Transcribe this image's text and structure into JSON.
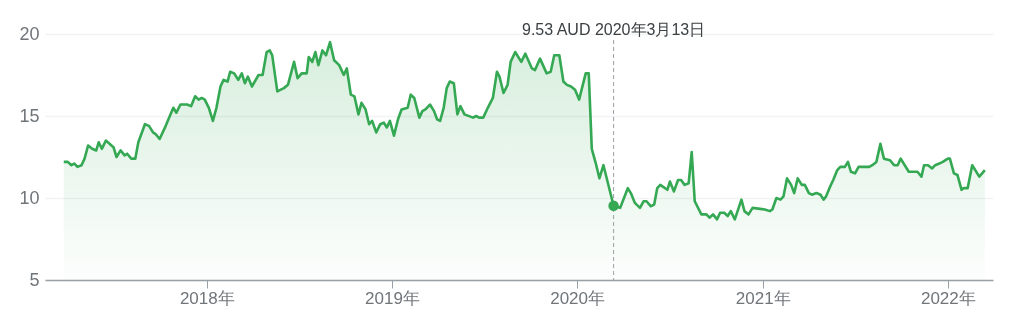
{
  "chart_data": {
    "type": "area",
    "x": [
      "2017-03-25",
      "2017-04-02",
      "2017-04-09",
      "2017-04-15",
      "2017-04-21",
      "2017-04-29",
      "2017-05-05",
      "2017-05-12",
      "2017-05-20",
      "2017-05-28",
      "2017-06-02",
      "2017-06-08",
      "2017-06-16",
      "2017-07-01",
      "2017-07-07",
      "2017-07-15",
      "2017-07-23",
      "2017-07-28",
      "2017-08-05",
      "2017-08-13",
      "2017-08-19",
      "2017-09-01",
      "2017-09-09",
      "2017-09-17",
      "2017-09-22",
      "2017-09-30",
      "2017-10-12",
      "2017-10-27",
      "2017-11-02",
      "2017-11-10",
      "2017-11-23",
      "2017-12-01",
      "2017-12-09",
      "2017-12-16",
      "2017-12-22",
      "2017-12-28",
      "2018-01-05",
      "2018-01-13",
      "2018-01-20",
      "2018-01-28",
      "2018-02-03",
      "2018-02-11",
      "2018-02-16",
      "2018-02-24",
      "2018-03-04",
      "2018-03-11",
      "2018-03-17",
      "2018-03-23",
      "2018-03-31",
      "2018-04-13",
      "2018-04-21",
      "2018-04-29",
      "2018-05-05",
      "2018-05-10",
      "2018-05-20",
      "2018-06-02",
      "2018-06-10",
      "2018-06-22",
      "2018-06-29",
      "2018-07-07",
      "2018-07-17",
      "2018-07-21",
      "2018-07-28",
      "2018-08-03",
      "2018-08-09",
      "2018-08-17",
      "2018-08-24",
      "2018-09-01",
      "2018-09-09",
      "2018-09-19",
      "2018-09-28",
      "2018-10-04",
      "2018-10-12",
      "2018-10-19",
      "2018-10-27",
      "2018-11-02",
      "2018-11-10",
      "2018-11-17",
      "2018-11-23",
      "2018-12-01",
      "2018-12-09",
      "2018-12-16",
      "2018-12-22",
      "2018-12-28",
      "2019-01-05",
      "2019-01-13",
      "2019-01-20",
      "2019-02-01",
      "2019-02-07",
      "2019-02-14",
      "2019-02-24",
      "2019-03-02",
      "2019-03-08",
      "2019-03-17",
      "2019-03-25",
      "2019-03-31",
      "2019-04-06",
      "2019-04-13",
      "2019-04-19",
      "2019-04-25",
      "2019-05-03",
      "2019-05-10",
      "2019-05-16",
      "2019-05-24",
      "2019-06-10",
      "2019-06-16",
      "2019-06-22",
      "2019-06-30",
      "2019-07-09",
      "2019-07-19",
      "2019-07-27",
      "2019-08-01",
      "2019-08-09",
      "2019-08-17",
      "2019-08-23",
      "2019-09-01",
      "2019-09-13",
      "2019-09-21",
      "2019-10-04",
      "2019-10-10",
      "2019-10-20",
      "2019-11-02",
      "2019-11-10",
      "2019-11-17",
      "2019-11-27",
      "2019-12-05",
      "2019-12-12",
      "2019-12-20",
      "2019-12-28",
      "2020-01-05",
      "2020-01-18",
      "2020-01-24",
      "2020-01-30",
      "2020-02-07",
      "2020-02-14",
      "2020-02-22",
      "2020-03-13",
      "2020-03-26",
      "2020-04-10",
      "2020-04-16",
      "2020-04-24",
      "2020-05-04",
      "2020-05-11",
      "2020-05-17",
      "2020-05-25",
      "2020-06-01",
      "2020-06-07",
      "2020-06-13",
      "2020-06-27",
      "2020-07-02",
      "2020-07-10",
      "2020-07-18",
      "2020-07-24",
      "2020-07-31",
      "2020-08-08",
      "2020-08-14",
      "2020-08-20",
      "2020-09-02",
      "2020-09-12",
      "2020-09-18",
      "2020-09-25",
      "2020-10-03",
      "2020-10-09",
      "2020-10-17",
      "2020-10-24",
      "2020-10-30",
      "2020-11-07",
      "2020-11-20",
      "2020-11-26",
      "2020-12-04",
      "2020-12-12",
      "2021-01-05",
      "2021-01-15",
      "2021-01-20",
      "2021-01-28",
      "2021-02-05",
      "2021-02-11",
      "2021-02-18",
      "2021-02-26",
      "2021-03-04",
      "2021-03-11",
      "2021-03-19",
      "2021-03-25",
      "2021-04-02",
      "2021-04-08",
      "2021-04-17",
      "2021-04-25",
      "2021-05-01",
      "2021-05-06",
      "2021-05-14",
      "2021-05-20",
      "2021-05-28",
      "2021-06-03",
      "2021-06-12",
      "2021-06-18",
      "2021-06-24",
      "2021-07-02",
      "2021-07-09",
      "2021-07-17",
      "2021-07-30",
      "2021-08-05",
      "2021-08-13",
      "2021-08-21",
      "2021-08-28",
      "2021-09-09",
      "2021-09-17",
      "2021-09-24",
      "2021-09-30",
      "2021-10-08",
      "2021-10-16",
      "2021-10-25",
      "2021-11-02",
      "2021-11-10",
      "2021-11-15",
      "2021-11-23",
      "2021-12-01",
      "2021-12-07",
      "2021-12-15",
      "2021-12-22",
      "2022-01-01",
      "2022-01-05",
      "2022-01-13",
      "2022-01-20",
      "2022-01-28",
      "2022-02-01",
      "2022-02-09",
      "2022-02-18",
      "2022-03-04",
      "2022-03-15"
    ],
    "series": [
      {
        "color": "#34a853",
        "values": [
          12.2,
          12.2,
          12.0,
          12.1,
          11.9,
          12.0,
          12.4,
          13.2,
          13.0,
          12.9,
          13.4,
          13.0,
          13.5,
          13.1,
          12.5,
          12.9,
          12.6,
          12.7,
          12.4,
          12.4,
          13.4,
          14.5,
          14.4,
          14.0,
          13.9,
          13.6,
          14.4,
          15.5,
          15.2,
          15.7,
          15.7,
          15.6,
          16.2,
          16.0,
          16.1,
          16.0,
          15.5,
          14.7,
          15.5,
          16.8,
          17.2,
          17.1,
          17.7,
          17.6,
          17.2,
          17.6,
          17.0,
          17.4,
          16.8,
          17.5,
          17.5,
          18.9,
          19.0,
          18.7,
          16.5,
          16.7,
          16.9,
          18.3,
          17.3,
          17.6,
          17.6,
          18.6,
          18.3,
          18.9,
          18.1,
          19.0,
          18.7,
          19.5,
          18.4,
          18.1,
          17.5,
          17.9,
          16.3,
          16.2,
          15.1,
          15.8,
          15.4,
          14.5,
          14.7,
          14.0,
          14.5,
          14.6,
          14.3,
          14.7,
          13.8,
          14.8,
          15.4,
          15.5,
          16.3,
          16.1,
          14.9,
          15.3,
          15.4,
          15.7,
          15.3,
          14.8,
          14.7,
          15.5,
          16.7,
          17.1,
          17.0,
          15.1,
          15.6,
          15.1,
          14.9,
          15.0,
          14.9,
          14.9,
          15.5,
          16.1,
          17.7,
          17.4,
          16.4,
          16.9,
          18.3,
          18.9,
          18.3,
          18.8,
          17.9,
          17.8,
          18.5,
          17.6,
          17.7,
          18.7,
          18.7,
          17.1,
          16.9,
          16.8,
          16.6,
          16.0,
          17.6,
          17.6,
          13.0,
          12.1,
          11.2,
          12.0,
          9.53,
          9.4,
          10.6,
          10.3,
          9.7,
          9.4,
          9.8,
          9.8,
          9.5,
          9.6,
          10.6,
          10.8,
          10.5,
          11.0,
          10.4,
          11.1,
          11.1,
          10.8,
          10.9,
          12.8,
          9.8,
          9.0,
          9.0,
          8.8,
          9.0,
          8.7,
          9.1,
          9.1,
          8.9,
          9.2,
          8.7,
          9.9,
          9.2,
          9.0,
          9.4,
          9.3,
          9.2,
          9.3,
          10.0,
          9.9,
          10.1,
          11.2,
          10.8,
          10.3,
          11.2,
          10.8,
          10.8,
          10.3,
          10.2,
          10.3,
          10.2,
          9.9,
          10.1,
          10.7,
          11.1,
          11.7,
          11.9,
          11.9,
          12.2,
          11.6,
          11.5,
          11.9,
          11.9,
          11.9,
          12.0,
          12.2,
          13.3,
          12.4,
          12.3,
          12.0,
          12.0,
          12.4,
          12.0,
          11.6,
          11.6,
          11.6,
          11.3,
          12.0,
          12.0,
          11.8,
          12.0,
          12.1,
          12.2,
          12.4,
          12.4,
          11.5,
          11.4,
          10.5,
          10.6,
          10.6,
          12.0,
          11.3,
          11.7
        ]
      }
    ],
    "xlim": [
      "2017-02-16",
      "2022-03-31"
    ],
    "xticks": [
      {
        "value": "2018-01-01",
        "label": "2018年"
      },
      {
        "value": "2019-01-01",
        "label": "2019年"
      },
      {
        "value": "2020-01-01",
        "label": "2020年"
      },
      {
        "value": "2021-01-01",
        "label": "2021年"
      },
      {
        "value": "2022-01-01",
        "label": "2022年"
      }
    ],
    "ylim": [
      5,
      20
    ],
    "yticks": [
      5,
      10,
      15,
      20
    ],
    "grid": "y",
    "ref_lines": [
      {
        "axis": "x",
        "value": "2020-03-13",
        "label": "9.53 AUD  2020年3月13日",
        "line_style": "dashed",
        "color": "#9aa0a6"
      }
    ]
  }
}
